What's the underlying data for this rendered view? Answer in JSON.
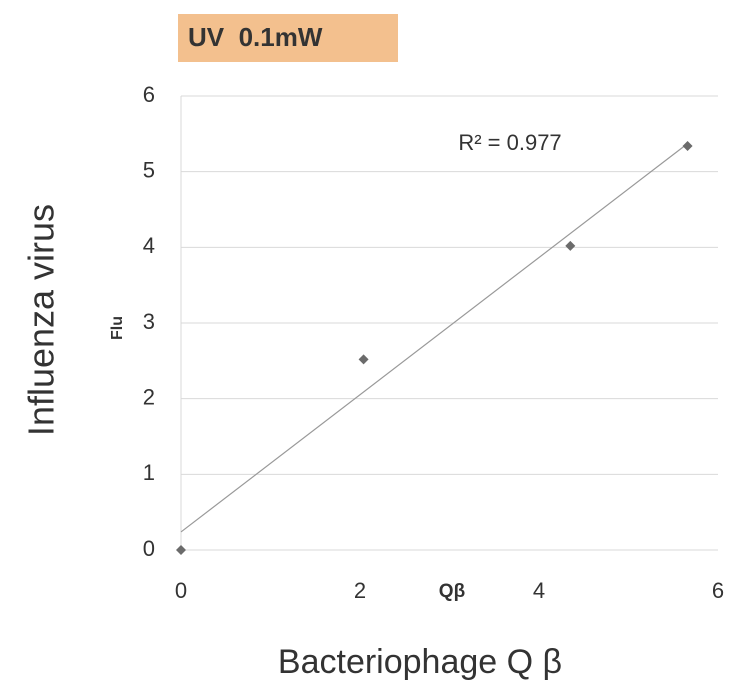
{
  "chart_data": {
    "type": "scatter",
    "title": "UV  0.1mW",
    "y_label": "Influenza virus",
    "y_label_short": "Flu",
    "x_label": "Bacteriophage Q β",
    "x_label_short": "Qβ",
    "annotation": "R² = 0.977",
    "x": [
      0,
      2.04,
      4.35,
      5.66
    ],
    "values": [
      0,
      2.52,
      4.02,
      5.34
    ],
    "color": "#6b6b6b",
    "trendline": true,
    "xlim": [
      0,
      6
    ],
    "xticks": [
      0,
      2,
      4,
      6
    ],
    "ylim": [
      0,
      6
    ],
    "yticks": [
      0,
      1,
      2,
      3,
      4,
      5,
      6
    ],
    "grid": true
  }
}
